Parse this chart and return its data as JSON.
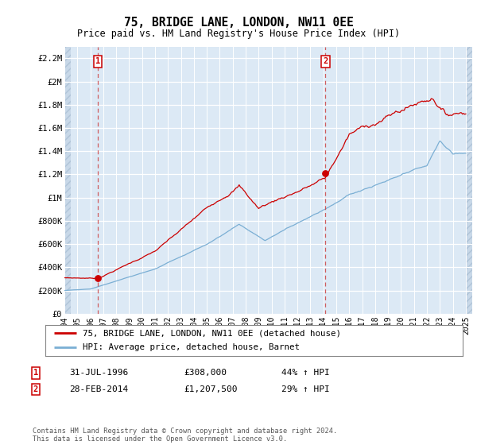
{
  "title": "75, BRIDGE LANE, LONDON, NW11 0EE",
  "subtitle": "Price paid vs. HM Land Registry's House Price Index (HPI)",
  "legend_line1": "75, BRIDGE LANE, LONDON, NW11 0EE (detached house)",
  "legend_line2": "HPI: Average price, detached house, Barnet",
  "annotation1_date": "31-JUL-1996",
  "annotation1_price": "£308,000",
  "annotation1_hpi": "44% ↑ HPI",
  "annotation1_year": 1996.58,
  "annotation1_value": 308000,
  "annotation2_date": "28-FEB-2014",
  "annotation2_price": "£1,207,500",
  "annotation2_hpi": "29% ↑ HPI",
  "annotation2_year": 2014.16,
  "annotation2_value": 1207500,
  "footer": "Contains HM Land Registry data © Crown copyright and database right 2024.\nThis data is licensed under the Open Government Licence v3.0.",
  "line_color_red": "#cc0000",
  "line_color_blue": "#7bafd4",
  "bg_color": "#dce9f5",
  "hatch_color": "#c8d8e8",
  "ylim": [
    0,
    2300000
  ],
  "xlim_start": 1994.0,
  "xlim_end": 2025.5,
  "yticks": [
    0,
    200000,
    400000,
    600000,
    800000,
    1000000,
    1200000,
    1400000,
    1600000,
    1800000,
    2000000,
    2200000
  ],
  "ytick_labels": [
    "£0",
    "£200K",
    "£400K",
    "£600K",
    "£800K",
    "£1M",
    "£1.2M",
    "£1.4M",
    "£1.6M",
    "£1.8M",
    "£2M",
    "£2.2M"
  ],
  "xticks": [
    1994,
    1995,
    1996,
    1997,
    1998,
    1999,
    2000,
    2001,
    2002,
    2003,
    2004,
    2005,
    2006,
    2007,
    2008,
    2009,
    2010,
    2011,
    2012,
    2013,
    2014,
    2015,
    2016,
    2017,
    2018,
    2019,
    2020,
    2021,
    2022,
    2023,
    2024,
    2025
  ],
  "hatch_end_year": 1996.0
}
